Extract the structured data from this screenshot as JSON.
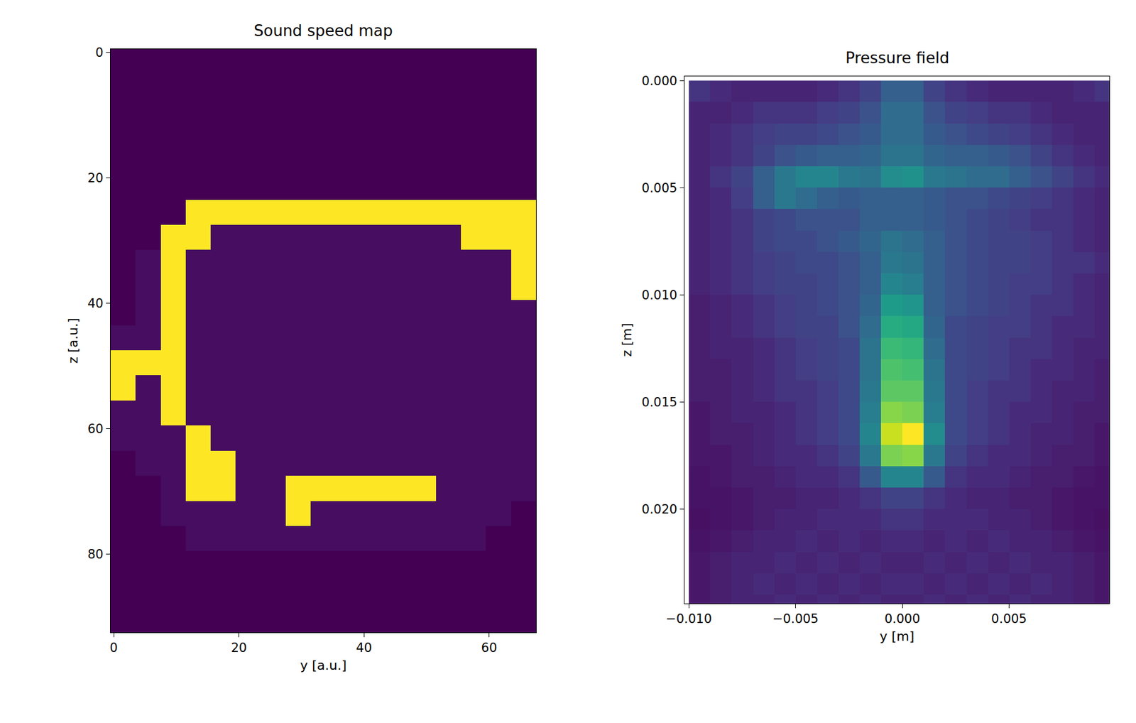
{
  "chart_data": [
    {
      "type": "heatmap",
      "title": "Sound speed map",
      "x_label": "y [a.u.]",
      "y_label": "z [a.u.]",
      "color": "viridis",
      "xlim": [
        -0.5,
        67.5
      ],
      "ylim": [
        92.5,
        -0.5
      ],
      "xticks": [
        0,
        20,
        40,
        60
      ],
      "yticks": [
        0,
        20,
        40,
        60,
        80
      ],
      "zlim": [
        1500,
        3000
      ],
      "x": [
        1.5,
        5.5,
        9.5,
        13.5,
        17.5,
        21.5,
        25.5,
        29.5,
        33.5,
        37.5,
        41.5,
        45.5,
        49.5,
        53.5,
        57.5,
        61.5,
        65.5
      ],
      "y": [
        1.5,
        5.5,
        9.5,
        13.5,
        17.5,
        21.5,
        25.5,
        29.5,
        33.5,
        37.5,
        41.5,
        45.5,
        49.5,
        53.5,
        57.5,
        61.5,
        65.5,
        69.5,
        73.5,
        77.5,
        81.5,
        85.5,
        89.5,
        93.5
      ],
      "z": [
        [
          1500,
          1500,
          1500,
          1500,
          1500,
          1500,
          1500,
          1500,
          1500,
          1500,
          1500,
          1500,
          1500,
          1500,
          1500,
          1500,
          1500
        ],
        [
          1500,
          1500,
          1500,
          1500,
          1500,
          1500,
          1500,
          1500,
          1500,
          1500,
          1500,
          1500,
          1500,
          1500,
          1500,
          1500,
          1500
        ],
        [
          1500,
          1500,
          1500,
          1500,
          1500,
          1500,
          1500,
          1500,
          1500,
          1500,
          1500,
          1500,
          1500,
          1500,
          1500,
          1500,
          1500
        ],
        [
          1500,
          1500,
          1500,
          1500,
          1500,
          1500,
          1500,
          1500,
          1500,
          1500,
          1500,
          1500,
          1500,
          1500,
          1500,
          1500,
          1500
        ],
        [
          1500,
          1500,
          1500,
          1500,
          1500,
          1500,
          1500,
          1500,
          1500,
          1500,
          1500,
          1500,
          1500,
          1500,
          1500,
          1500,
          1500
        ],
        [
          1500,
          1500,
          1500,
          1500,
          1500,
          1500,
          1500,
          1500,
          1500,
          1500,
          1500,
          1500,
          1500,
          1500,
          1500,
          1500,
          1500
        ],
        [
          1500,
          1500,
          1500,
          3000,
          3000,
          3000,
          3000,
          3000,
          3000,
          3000,
          3000,
          3000,
          3000,
          3000,
          3000,
          3000,
          3000
        ],
        [
          1500,
          1500,
          3000,
          3000,
          1550,
          1550,
          1550,
          1550,
          1550,
          1550,
          1550,
          1550,
          1550,
          1550,
          3000,
          3000,
          3000
        ],
        [
          1500,
          1550,
          3000,
          1550,
          1550,
          1550,
          1550,
          1550,
          1550,
          1550,
          1550,
          1550,
          1550,
          1550,
          1550,
          1550,
          3000
        ],
        [
          1500,
          1550,
          3000,
          1550,
          1550,
          1550,
          1550,
          1550,
          1550,
          1550,
          1550,
          1550,
          1550,
          1550,
          1550,
          1550,
          3000
        ],
        [
          1500,
          1550,
          3000,
          1550,
          1550,
          1550,
          1550,
          1550,
          1550,
          1550,
          1550,
          1550,
          1550,
          1550,
          1550,
          1550,
          1550
        ],
        [
          1550,
          1550,
          3000,
          1550,
          1550,
          1550,
          1550,
          1550,
          1550,
          1550,
          1550,
          1550,
          1550,
          1550,
          1550,
          1550,
          1550
        ],
        [
          3000,
          3000,
          3000,
          1550,
          1550,
          1550,
          1550,
          1550,
          1550,
          1550,
          1550,
          1550,
          1550,
          1550,
          1550,
          1550,
          1550
        ],
        [
          3000,
          1550,
          3000,
          1550,
          1550,
          1550,
          1550,
          1550,
          1550,
          1550,
          1550,
          1550,
          1550,
          1550,
          1550,
          1550,
          1550
        ],
        [
          1550,
          1550,
          3000,
          1550,
          1550,
          1550,
          1550,
          1550,
          1550,
          1550,
          1550,
          1550,
          1550,
          1550,
          1550,
          1550,
          1550
        ],
        [
          1550,
          1550,
          1550,
          3000,
          1550,
          1550,
          1550,
          1550,
          1550,
          1550,
          1550,
          1550,
          1550,
          1550,
          1550,
          1550,
          1550
        ],
        [
          1500,
          1550,
          1550,
          3000,
          3000,
          1550,
          1550,
          1550,
          1550,
          1550,
          1550,
          1550,
          1550,
          1550,
          1550,
          1550,
          1550
        ],
        [
          1500,
          1500,
          1550,
          3000,
          3000,
          1550,
          1550,
          3000,
          3000,
          3000,
          3000,
          3000,
          3000,
          1550,
          1550,
          1550,
          1550
        ],
        [
          1500,
          1500,
          1550,
          1550,
          1550,
          1550,
          1550,
          3000,
          1550,
          1550,
          1550,
          1550,
          1550,
          1550,
          1550,
          1550,
          1500
        ],
        [
          1500,
          1500,
          1500,
          1550,
          1550,
          1550,
          1550,
          1550,
          1550,
          1550,
          1550,
          1550,
          1550,
          1550,
          1550,
          1500,
          1500
        ],
        [
          1500,
          1500,
          1500,
          1500,
          1500,
          1500,
          1500,
          1500,
          1500,
          1500,
          1500,
          1500,
          1500,
          1500,
          1500,
          1500,
          1500
        ],
        [
          1500,
          1500,
          1500,
          1500,
          1500,
          1500,
          1500,
          1500,
          1500,
          1500,
          1500,
          1500,
          1500,
          1500,
          1500,
          1500,
          1500
        ],
        [
          1500,
          1500,
          1500,
          1500,
          1500,
          1500,
          1500,
          1500,
          1500,
          1500,
          1500,
          1500,
          1500,
          1500,
          1500,
          1500,
          1500
        ],
        [
          1500,
          1500,
          1500,
          1500,
          1500,
          1500,
          1500,
          1500,
          1500,
          1500,
          1500,
          1500,
          1500,
          1500,
          1500,
          1500,
          1500
        ]
      ]
    },
    {
      "type": "heatmap",
      "title": "Pressure field",
      "x_label": "y [m]",
      "y_label": "z [m]",
      "color": "viridis",
      "xlim": [
        -0.0102,
        0.0097
      ],
      "ylim": [
        0.0244,
        -0.0002
      ],
      "xticks": [
        {
          "value": -0.01,
          "label": "−0.010"
        },
        {
          "value": -0.005,
          "label": "−0.005"
        },
        {
          "value": 0,
          "label": "0.000"
        },
        {
          "value": 0.005,
          "label": "0.005"
        }
      ],
      "yticks": [
        {
          "value": 0,
          "label": "0.000"
        },
        {
          "value": 0.005,
          "label": "0.005"
        },
        {
          "value": 0.01,
          "label": "0.010"
        },
        {
          "value": 0.015,
          "label": "0.015"
        },
        {
          "value": 0.02,
          "label": "0.020"
        }
      ],
      "zlim": [
        0,
        1
      ],
      "x": [
        -0.0095,
        -0.0085,
        -0.0075,
        -0.0065,
        -0.0055,
        -0.0045,
        -0.0035,
        -0.0025,
        -0.0015,
        -0.0005,
        0.0005,
        0.0015,
        0.0025,
        0.0035,
        0.0045,
        0.0055,
        0.0065,
        0.0075,
        0.0085,
        0.0095
      ],
      "y": [
        0.0005,
        0.0015,
        0.0025,
        0.0035,
        0.0045,
        0.0055,
        0.0065,
        0.0075,
        0.0085,
        0.0095,
        0.0105,
        0.0115,
        0.0125,
        0.0135,
        0.0145,
        0.0155,
        0.0165,
        0.0175,
        0.0185,
        0.0195,
        0.0205,
        0.0215,
        0.0225,
        0.0235,
        0.0245
      ],
      "z": [
        [
          0.15,
          0.12,
          0.1,
          0.1,
          0.1,
          0.1,
          0.12,
          0.15,
          0.2,
          0.3,
          0.3,
          0.2,
          0.15,
          0.12,
          0.1,
          0.1,
          0.1,
          0.1,
          0.12,
          0.15
        ],
        [
          0.1,
          0.1,
          0.12,
          0.15,
          0.15,
          0.15,
          0.18,
          0.2,
          0.25,
          0.35,
          0.35,
          0.25,
          0.2,
          0.18,
          0.15,
          0.15,
          0.12,
          0.1,
          0.1,
          0.1
        ],
        [
          0.1,
          0.12,
          0.15,
          0.18,
          0.2,
          0.2,
          0.22,
          0.25,
          0.28,
          0.35,
          0.35,
          0.28,
          0.25,
          0.22,
          0.2,
          0.18,
          0.15,
          0.12,
          0.1,
          0.1
        ],
        [
          0.1,
          0.12,
          0.15,
          0.2,
          0.25,
          0.28,
          0.3,
          0.3,
          0.32,
          0.38,
          0.38,
          0.32,
          0.3,
          0.3,
          0.28,
          0.25,
          0.2,
          0.15,
          0.12,
          0.1
        ],
        [
          0.1,
          0.15,
          0.2,
          0.3,
          0.4,
          0.45,
          0.45,
          0.4,
          0.38,
          0.48,
          0.5,
          0.4,
          0.38,
          0.35,
          0.35,
          0.3,
          0.25,
          0.2,
          0.15,
          0.12
        ],
        [
          0.1,
          0.12,
          0.18,
          0.3,
          0.4,
          0.35,
          0.3,
          0.28,
          0.3,
          0.3,
          0.3,
          0.28,
          0.25,
          0.25,
          0.22,
          0.2,
          0.18,
          0.15,
          0.12,
          0.1
        ],
        [
          0.1,
          0.12,
          0.15,
          0.2,
          0.22,
          0.25,
          0.25,
          0.25,
          0.3,
          0.3,
          0.3,
          0.28,
          0.25,
          0.22,
          0.2,
          0.18,
          0.15,
          0.15,
          0.12,
          0.1
        ],
        [
          0.1,
          0.12,
          0.15,
          0.2,
          0.22,
          0.22,
          0.25,
          0.28,
          0.32,
          0.38,
          0.35,
          0.3,
          0.25,
          0.22,
          0.2,
          0.2,
          0.18,
          0.15,
          0.12,
          0.1
        ],
        [
          0.1,
          0.12,
          0.15,
          0.18,
          0.2,
          0.22,
          0.22,
          0.25,
          0.3,
          0.4,
          0.38,
          0.3,
          0.25,
          0.22,
          0.2,
          0.2,
          0.18,
          0.15,
          0.15,
          0.12
        ],
        [
          0.1,
          0.12,
          0.15,
          0.18,
          0.2,
          0.2,
          0.22,
          0.25,
          0.3,
          0.45,
          0.42,
          0.3,
          0.25,
          0.22,
          0.2,
          0.18,
          0.18,
          0.15,
          0.12,
          0.1
        ],
        [
          0.08,
          0.1,
          0.12,
          0.15,
          0.18,
          0.2,
          0.22,
          0.25,
          0.32,
          0.55,
          0.52,
          0.3,
          0.25,
          0.22,
          0.2,
          0.18,
          0.15,
          0.15,
          0.12,
          0.1
        ],
        [
          0.08,
          0.1,
          0.12,
          0.15,
          0.18,
          0.2,
          0.2,
          0.25,
          0.35,
          0.62,
          0.6,
          0.32,
          0.22,
          0.2,
          0.18,
          0.18,
          0.15,
          0.12,
          0.12,
          0.1
        ],
        [
          0.08,
          0.1,
          0.1,
          0.12,
          0.15,
          0.18,
          0.2,
          0.22,
          0.38,
          0.68,
          0.66,
          0.35,
          0.22,
          0.2,
          0.18,
          0.15,
          0.15,
          0.12,
          0.1,
          0.1
        ],
        [
          0.08,
          0.08,
          0.1,
          0.12,
          0.15,
          0.18,
          0.2,
          0.22,
          0.38,
          0.72,
          0.7,
          0.38,
          0.22,
          0.2,
          0.18,
          0.15,
          0.12,
          0.12,
          0.1,
          0.08
        ],
        [
          0.08,
          0.08,
          0.1,
          0.12,
          0.15,
          0.15,
          0.18,
          0.22,
          0.4,
          0.75,
          0.75,
          0.4,
          0.22,
          0.18,
          0.15,
          0.15,
          0.12,
          0.1,
          0.1,
          0.08
        ],
        [
          0.06,
          0.08,
          0.1,
          0.1,
          0.12,
          0.15,
          0.18,
          0.22,
          0.42,
          0.82,
          0.8,
          0.42,
          0.22,
          0.18,
          0.15,
          0.12,
          0.12,
          0.1,
          0.08,
          0.08
        ],
        [
          0.06,
          0.08,
          0.08,
          0.1,
          0.12,
          0.15,
          0.18,
          0.22,
          0.45,
          0.92,
          1.0,
          0.48,
          0.22,
          0.18,
          0.15,
          0.12,
          0.1,
          0.1,
          0.08,
          0.06
        ],
        [
          0.06,
          0.06,
          0.08,
          0.1,
          0.12,
          0.12,
          0.15,
          0.2,
          0.4,
          0.8,
          0.82,
          0.4,
          0.2,
          0.15,
          0.12,
          0.12,
          0.1,
          0.08,
          0.08,
          0.06
        ],
        [
          0.05,
          0.06,
          0.08,
          0.08,
          0.1,
          0.12,
          0.12,
          0.15,
          0.28,
          0.45,
          0.45,
          0.28,
          0.15,
          0.12,
          0.12,
          0.1,
          0.08,
          0.08,
          0.06,
          0.05
        ],
        [
          0.05,
          0.05,
          0.06,
          0.08,
          0.08,
          0.1,
          0.1,
          0.12,
          0.15,
          0.2,
          0.2,
          0.15,
          0.12,
          0.1,
          0.1,
          0.08,
          0.08,
          0.06,
          0.05,
          0.05
        ],
        [
          0.04,
          0.05,
          0.06,
          0.08,
          0.1,
          0.1,
          0.12,
          0.12,
          0.12,
          0.15,
          0.15,
          0.12,
          0.12,
          0.12,
          0.1,
          0.1,
          0.08,
          0.06,
          0.05,
          0.04
        ],
        [
          0.05,
          0.06,
          0.08,
          0.1,
          0.1,
          0.12,
          0.1,
          0.12,
          0.1,
          0.12,
          0.12,
          0.1,
          0.12,
          0.1,
          0.12,
          0.1,
          0.1,
          0.08,
          0.06,
          0.05
        ],
        [
          0.06,
          0.08,
          0.1,
          0.1,
          0.12,
          0.1,
          0.12,
          0.1,
          0.12,
          0.1,
          0.1,
          0.12,
          0.1,
          0.12,
          0.1,
          0.12,
          0.1,
          0.1,
          0.08,
          0.06
        ],
        [
          0.06,
          0.08,
          0.1,
          0.12,
          0.1,
          0.12,
          0.1,
          0.12,
          0.1,
          0.12,
          0.12,
          0.1,
          0.12,
          0.1,
          0.12,
          0.1,
          0.12,
          0.1,
          0.08,
          0.06
        ],
        [
          0.06,
          0.08,
          0.1,
          0.1,
          0.12,
          0.1,
          0.12,
          0.1,
          0.12,
          0.1,
          0.1,
          0.12,
          0.1,
          0.12,
          0.1,
          0.12,
          0.1,
          0.1,
          0.08,
          0.06
        ]
      ]
    }
  ]
}
